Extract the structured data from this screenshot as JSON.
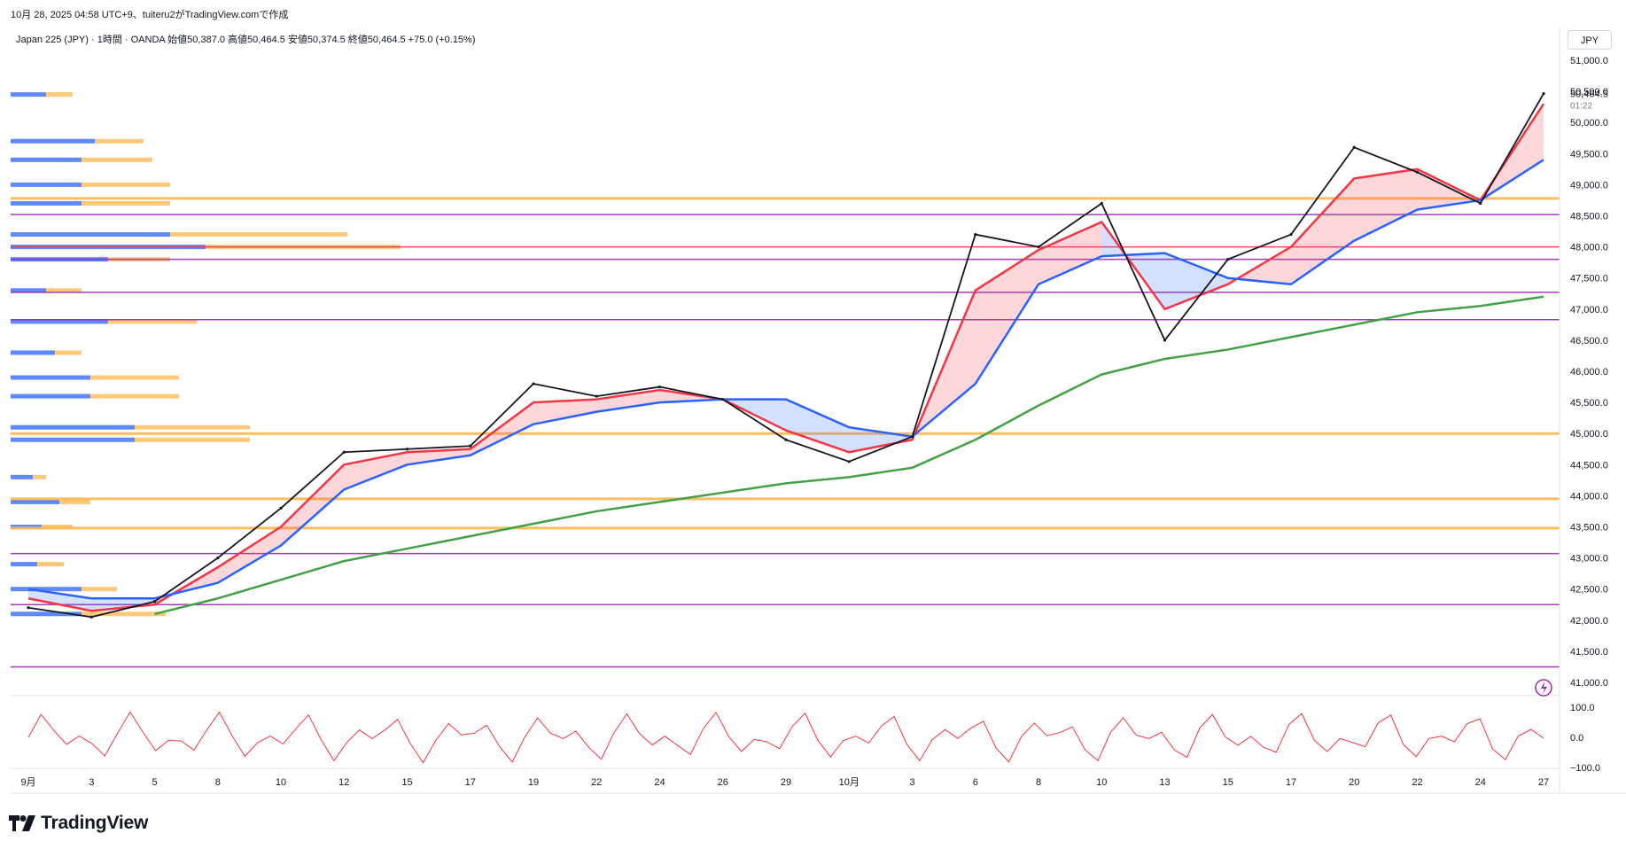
{
  "header": {
    "caption": "10月 28, 2025 04:58 UTC+9、tuiteru2がTradingView.comで作成",
    "legend": "Japan 225 (JPY) · 1時間 · OANDA  始値50,387.0  高値50,464.5  安値50,374.5  終値50,464.5  +75.0 (+0.15%)",
    "currency": "JPY"
  },
  "brand": {
    "name": "TradingView"
  },
  "colors": {
    "price": "#131722",
    "ema_fast": "#f23645",
    "ema_slow": "#2962ff",
    "ema_long": "#43a047",
    "bull_fill": "#f2364533",
    "bear_fill": "#2962ff33",
    "orange_level": "#ffb74d",
    "purple_level": "#9c27b0",
    "red_level": "#f23645",
    "vp_up": "#2962ff",
    "vp_down": "#ffb74d",
    "oscillator": "#f23645"
  },
  "chart_data": {
    "type": "line",
    "symbol": "Japan 225 (JPY)",
    "timeframe": "1時間",
    "ylim": [
      41000,
      51000
    ],
    "yticks": [
      "51,000.0",
      "50,500.0",
      "50,000.0",
      "49,500.0",
      "49,000.0",
      "48,500.0",
      "48,000.0",
      "47,500.0",
      "47,000.0",
      "46,500.0",
      "46,000.0",
      "45,500.0",
      "45,000.0",
      "44,500.0",
      "44,000.0",
      "43,500.0",
      "43,000.0",
      "42,500.0",
      "42,000.0",
      "41,500.0",
      "41,000.0"
    ],
    "last_price": {
      "value": "50,464.5",
      "countdown": "01:22"
    },
    "x": [
      "9月",
      "3",
      "5",
      "8",
      "10",
      "12",
      "15",
      "17",
      "19",
      "22",
      "24",
      "26",
      "29",
      "10月",
      "3",
      "6",
      "8",
      "10",
      "13",
      "15",
      "17",
      "20",
      "22",
      "24",
      "27"
    ],
    "close": [
      42200,
      42050,
      42300,
      43000,
      43800,
      44700,
      44750,
      44800,
      45800,
      45600,
      45750,
      45550,
      44900,
      44550,
      44950,
      48200,
      48000,
      48700,
      46500,
      47800,
      48200,
      49600,
      49200,
      48700,
      50464.5
    ],
    "series": [
      {
        "values": [
          42350,
          42150,
          42250,
          42850,
          43500,
          44500,
          44700,
          44750,
          45500,
          45550,
          45700,
          45550,
          45050,
          44700,
          44900,
          47300,
          47950,
          48400,
          47000,
          47400,
          48000,
          49100,
          49250,
          48750,
          50300
        ]
      },
      {
        "values": [
          42500,
          42350,
          42350,
          42600,
          43200,
          44100,
          44500,
          44650,
          45150,
          45350,
          45500,
          45550,
          45550,
          45100,
          44950,
          45800,
          47400,
          47850,
          47900,
          47500,
          47400,
          48100,
          48600,
          48750,
          49400
        ]
      },
      {
        "values": [
          null,
          null,
          42100,
          42350,
          42650,
          42950,
          43150,
          43350,
          43550,
          43750,
          43900,
          44050,
          44200,
          44300,
          44450,
          44900,
          45450,
          45950,
          46200,
          46350,
          46550,
          46750,
          46950,
          47050,
          47200
        ]
      }
    ],
    "levels": [
      {
        "value": 48780,
        "color": "orange"
      },
      {
        "value": 48520,
        "color": "purple"
      },
      {
        "value": 48000,
        "color": "red"
      },
      {
        "value": 47800,
        "color": "purple"
      },
      {
        "value": 47270,
        "color": "purple"
      },
      {
        "value": 46830,
        "color": "purple"
      },
      {
        "value": 45000,
        "color": "orange"
      },
      {
        "value": 43950,
        "color": "orange"
      },
      {
        "value": 43480,
        "color": "orange"
      },
      {
        "value": 43070,
        "color": "purple"
      },
      {
        "value": 42250,
        "color": "purple"
      },
      {
        "value": 41250,
        "color": "purple"
      }
    ],
    "volume_profile": [
      {
        "price": 50450,
        "up": 40,
        "down": 30
      },
      {
        "price": 49700,
        "up": 95,
        "down": 55
      },
      {
        "price": 49400,
        "up": 80,
        "down": 80
      },
      {
        "price": 49000,
        "up": 80,
        "down": 100
      },
      {
        "price": 48700,
        "up": 80,
        "down": 100
      },
      {
        "price": 48200,
        "up": 180,
        "down": 200
      },
      {
        "price": 48000,
        "up": 220,
        "down": 220
      },
      {
        "price": 47800,
        "up": 110,
        "down": 70
      },
      {
        "price": 47300,
        "up": 40,
        "down": 40
      },
      {
        "price": 46800,
        "up": 110,
        "down": 100
      },
      {
        "price": 46300,
        "up": 50,
        "down": 30
      },
      {
        "price": 45900,
        "up": 90,
        "down": 100
      },
      {
        "price": 45600,
        "up": 90,
        "down": 100
      },
      {
        "price": 45100,
        "up": 140,
        "down": 130
      },
      {
        "price": 44900,
        "up": 140,
        "down": 130
      },
      {
        "price": 44300,
        "up": 25,
        "down": 15
      },
      {
        "price": 43900,
        "up": 55,
        "down": 35
      },
      {
        "price": 43500,
        "up": 35,
        "down": 35
      },
      {
        "price": 42900,
        "up": 30,
        "down": 30
      },
      {
        "price": 42500,
        "up": 80,
        "down": 40
      },
      {
        "price": 42100,
        "up": 80,
        "down": 95
      }
    ],
    "oscillator": {
      "yticks": [
        "100.0",
        "0.0",
        "−100.0"
      ],
      "ylim": [
        -100,
        100
      ]
    }
  }
}
